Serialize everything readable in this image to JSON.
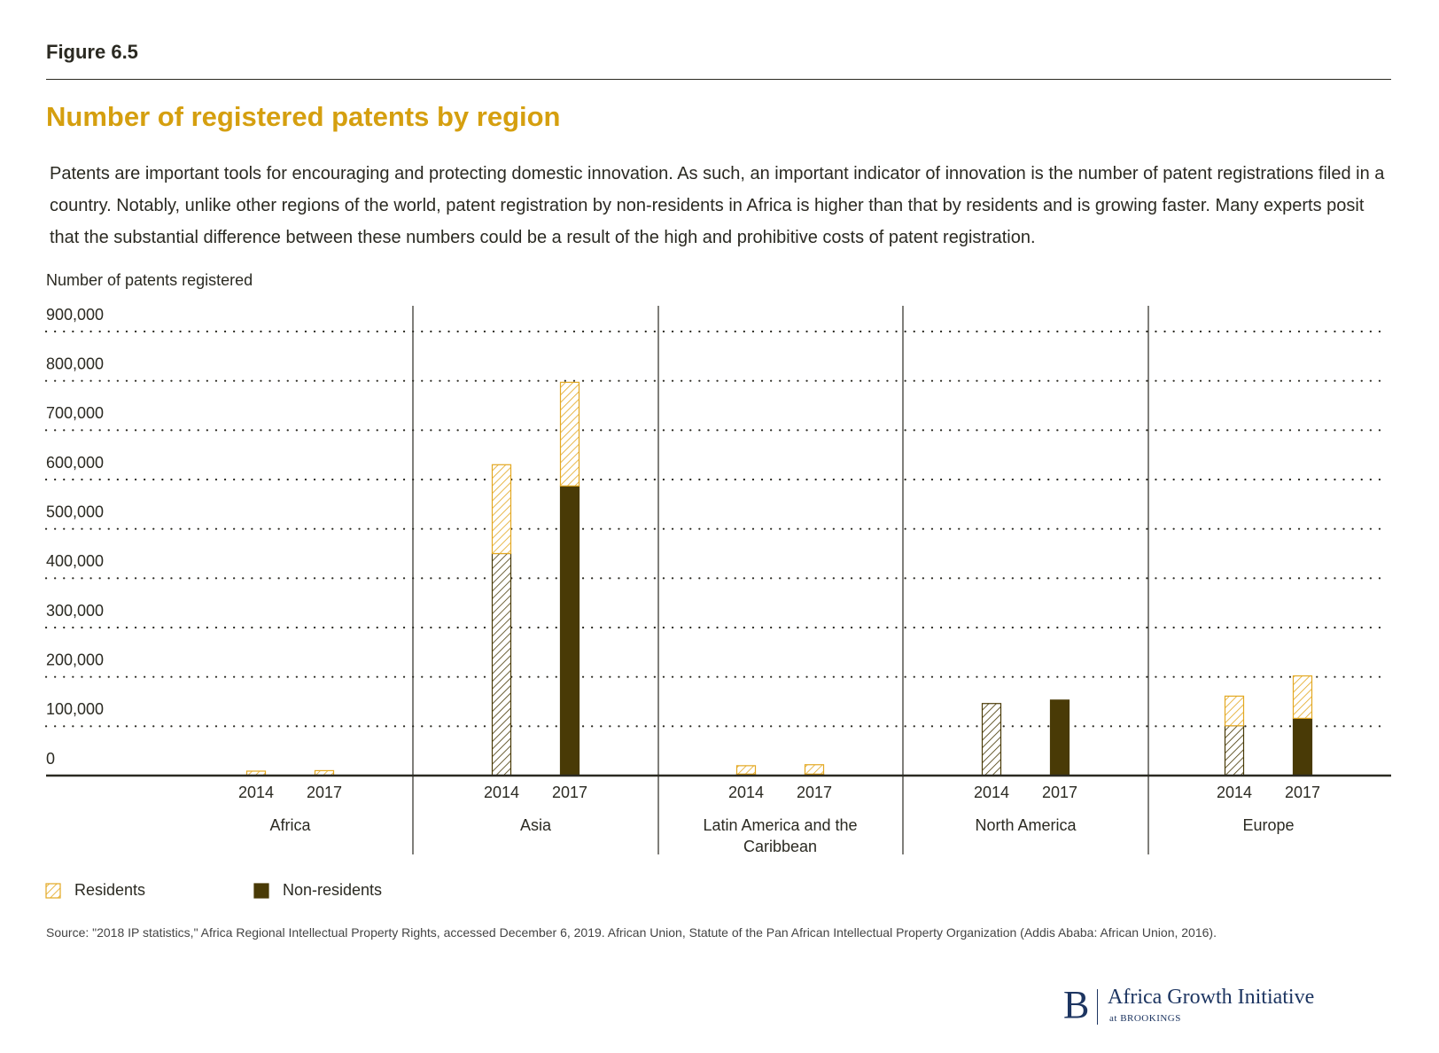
{
  "header": {
    "figure": "Figure 6.5",
    "description": "Patents are important tools for encouraging and protecting domestic innovation. As such, an important indicator of innovation is the number of patent registrations filed in a country. Notably, unlike other regions of the world, patent registration by non-residents in Africa is higher than that by residents and is growing faster. Many experts posit that the substantial difference between these numbers could be a result of the high and prohibitive costs of patent registration."
  },
  "chart_data": {
    "type": "stacked-bar",
    "title": "Number of registered patents by region",
    "y_label": "Number of patents registered",
    "groups": [
      "Africa",
      "Asia",
      "Latin America and the Caribbean",
      "North America",
      "Europe"
    ],
    "categories": [
      "2014",
      "2017",
      "2014",
      "2017",
      "2014",
      "2017",
      "2014",
      "2017",
      "2014",
      "2017"
    ],
    "series": [
      {
        "name": "Non-residents",
        "color": "#493a06",
        "values": [
          0,
          0,
          450000,
          587000,
          3000,
          3000,
          146000,
          153000,
          101000,
          116000
        ]
      },
      {
        "name": "Residents",
        "color": "#e3a822",
        "values": [
          9000,
          10000,
          180000,
          210000,
          17000,
          19000,
          0,
          0,
          60000,
          86000
        ]
      }
    ],
    "ylim": [
      0,
      900000
    ],
    "yticks": [
      0,
      {
        "value": 100000,
        "label": "100,000"
      },
      {
        "value": 200000,
        "label": "200,000"
      },
      {
        "value": 300000,
        "label": "300,000"
      },
      {
        "value": 400000,
        "label": "400,000"
      },
      {
        "value": 500000,
        "label": "500,000"
      },
      {
        "value": 600000,
        "label": "600,000"
      },
      {
        "value": 700000,
        "label": "700,000"
      },
      {
        "value": 800000,
        "label": "800,000"
      },
      {
        "value": 900000,
        "label": "900,000"
      }
    ],
    "grid": true,
    "legend": "bottom-left"
  },
  "footer": {
    "source": "Source: \"2018 IP statistics,\" Africa Regional Intellectual Property Rights, accessed December 6, 2019. African Union, Statute of the Pan African Intellectual Property Organization (Addis Ababa: African Union, 2016).",
    "logo_mark": "B",
    "logo_name": "Africa Growth Initiative",
    "logo_sub": "at BROOKINGS"
  }
}
